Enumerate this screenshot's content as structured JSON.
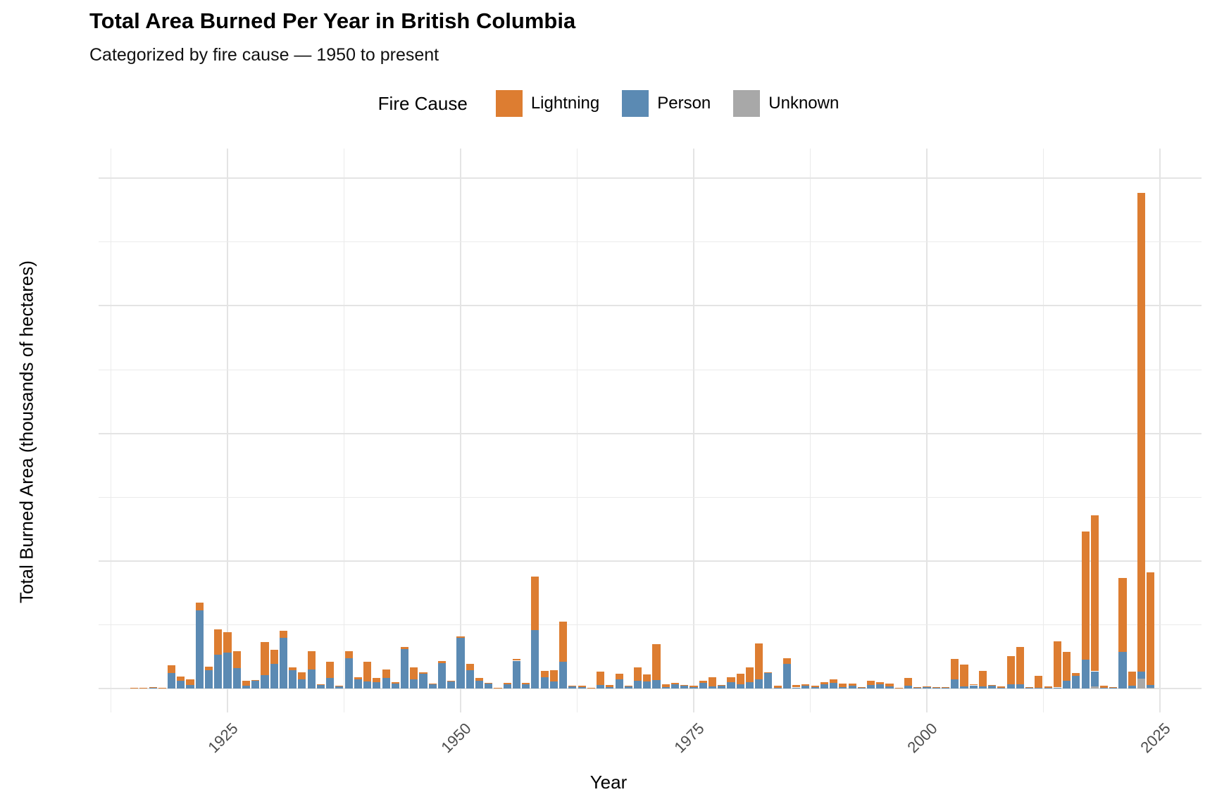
{
  "header": {
    "title": "Total Area Burned Per Year in British Columbia",
    "subtitle": "Categorized by fire cause — 1950 to present"
  },
  "legend": {
    "title": "Fire Cause",
    "items": [
      {
        "label": "Lightning",
        "color": "#DD7D31"
      },
      {
        "label": "Person",
        "color": "#5B8AB3"
      },
      {
        "label": "Unknown",
        "color": "#A8A8A8"
      }
    ]
  },
  "chart_data": {
    "type": "bar",
    "stacked": true,
    "title": "Total Area Burned Per Year in British Columbia",
    "subtitle": "Categorized by fire cause — 1950 to present",
    "xlabel": "Year",
    "ylabel": "Total Burned Area (thousands of hectares)",
    "legend_position": "top",
    "grid": true,
    "ylim": [
      0,
      4000
    ],
    "y_ticks": [
      0,
      1000,
      2000,
      3000,
      4000
    ],
    "y_minor_ticks": [
      500,
      1500,
      2500,
      3500
    ],
    "x_ticks": [
      1925,
      1950,
      1975,
      2000,
      2025
    ],
    "x_minor_ticks": [
      1912.5,
      1937.5,
      1962.5,
      1987.5,
      2012.5
    ],
    "stack_order_bottom_to_top": [
      "Unknown",
      "Person",
      "Lightning"
    ],
    "units": "thousands of hectares",
    "years": [
      1915,
      1916,
      1917,
      1918,
      1919,
      1920,
      1921,
      1922,
      1923,
      1924,
      1925,
      1926,
      1927,
      1928,
      1929,
      1930,
      1931,
      1932,
      1933,
      1934,
      1935,
      1936,
      1937,
      1938,
      1939,
      1940,
      1941,
      1942,
      1943,
      1944,
      1945,
      1946,
      1947,
      1948,
      1949,
      1950,
      1951,
      1952,
      1953,
      1954,
      1955,
      1956,
      1957,
      1958,
      1959,
      1960,
      1961,
      1962,
      1963,
      1964,
      1965,
      1966,
      1967,
      1968,
      1969,
      1970,
      1971,
      1972,
      1973,
      1974,
      1975,
      1976,
      1977,
      1978,
      1979,
      1980,
      1981,
      1982,
      1983,
      1984,
      1985,
      1986,
      1987,
      1988,
      1989,
      1990,
      1991,
      1992,
      1993,
      1994,
      1995,
      1996,
      1997,
      1998,
      1999,
      2000,
      2001,
      2002,
      2003,
      2004,
      2005,
      2006,
      2007,
      2008,
      2009,
      2010,
      2011,
      2012,
      2013,
      2014,
      2015,
      2016,
      2017,
      2018,
      2019,
      2020,
      2021,
      2022,
      2023,
      2024
    ],
    "series": [
      {
        "name": "Unknown",
        "color": "#A8A8A8",
        "values": [
          0,
          0,
          0,
          0,
          0,
          0,
          0,
          0,
          0,
          0,
          0,
          0,
          0,
          0,
          0,
          0,
          0,
          0,
          0,
          0,
          0,
          0,
          0,
          0,
          0,
          0,
          0,
          0,
          0,
          0,
          0,
          0,
          0,
          0,
          0,
          0,
          0,
          0,
          0,
          0,
          0,
          0,
          0,
          0,
          0,
          0,
          0,
          0,
          0,
          0,
          0,
          0,
          0,
          0,
          0,
          0,
          0,
          0,
          0,
          0,
          0,
          0,
          0,
          0,
          0,
          0,
          0,
          0,
          0,
          0,
          0,
          0,
          0,
          0,
          0,
          0,
          0,
          0,
          0,
          0,
          0,
          0,
          0,
          0,
          0,
          0,
          0,
          0,
          0,
          0,
          0,
          0,
          0,
          0,
          0,
          0,
          0,
          0,
          0,
          0,
          0,
          0,
          0,
          15,
          0,
          0,
          0,
          0,
          75,
          5
        ]
      },
      {
        "name": "Person",
        "color": "#5B8AB3",
        "values": [
          6,
          5,
          8,
          5,
          120,
          61,
          30,
          613,
          144,
          265,
          280,
          160,
          20,
          60,
          105,
          193,
          398,
          144,
          72,
          149,
          30,
          83,
          15,
          238,
          72,
          55,
          50,
          85,
          38,
          310,
          72,
          116,
          37,
          199,
          58,
          395,
          144,
          61,
          43,
          7,
          33,
          218,
          35,
          459,
          88,
          55,
          210,
          15,
          12,
          5,
          30,
          12,
          72,
          23,
          61,
          55,
          66,
          12,
          33,
          26,
          10,
          45,
          15,
          25,
          50,
          35,
          50,
          70,
          125,
          5,
          195,
          8,
          22,
          10,
          35,
          45,
          12,
          20,
          10,
          28,
          35,
          15,
          7,
          25,
          11,
          15,
          9,
          6,
          72,
          15,
          25,
          17,
          25,
          5,
          33,
          35,
          10,
          8,
          5,
          8,
          60,
          100,
          225,
          120,
          5,
          4,
          285,
          22,
          58,
          25
        ]
      },
      {
        "name": "Lightning",
        "color": "#DD7D31",
        "values": [
          2,
          2,
          3,
          2,
          62,
          33,
          42,
          61,
          27,
          199,
          160,
          133,
          41,
          6,
          260,
          111,
          55,
          22,
          55,
          144,
          3,
          127,
          10,
          55,
          16,
          155,
          33,
          64,
          10,
          16,
          94,
          11,
          2,
          16,
          3,
          15,
          49,
          22,
          2,
          1,
          11,
          12,
          9,
          419,
          50,
          89,
          315,
          5,
          8,
          1,
          103,
          18,
          44,
          2,
          105,
          55,
          282,
          23,
          12,
          2,
          15,
          16,
          73,
          5,
          38,
          81,
          116,
          283,
          2,
          20,
          42,
          20,
          13,
          15,
          17,
          27,
          28,
          18,
          2,
          32,
          13,
          25,
          1,
          58,
          1,
          3,
          1,
          3,
          160,
          173,
          9,
          122,
          5,
          10,
          221,
          290,
          2,
          94,
          13,
          360,
          227,
          21,
          1005,
          1224,
          16,
          10,
          584,
          113,
          3750,
          880
        ]
      }
    ]
  }
}
